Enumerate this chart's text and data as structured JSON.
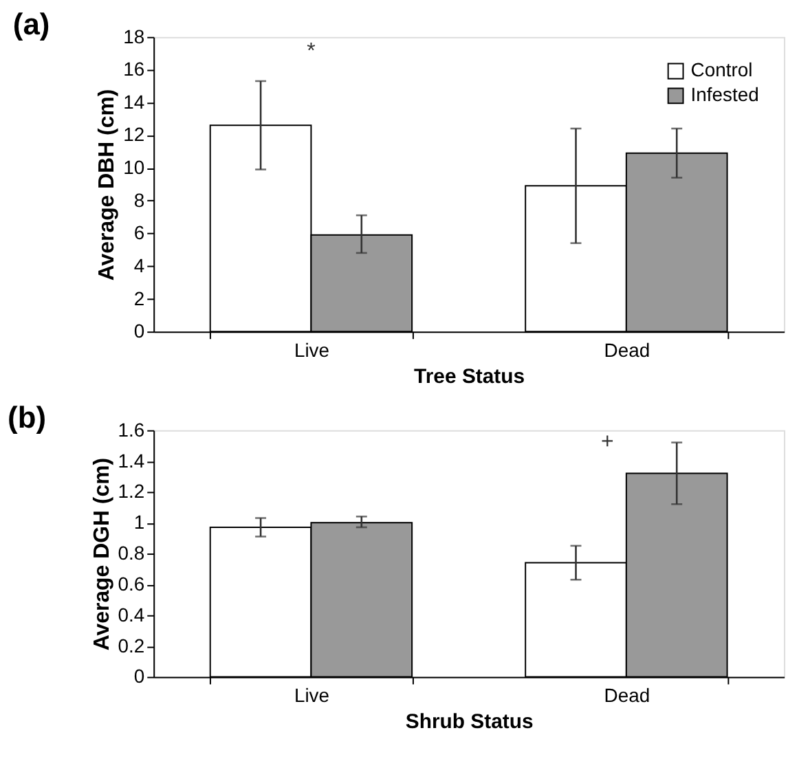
{
  "chart_data": [
    {
      "type": "bar",
      "title": "(a)",
      "xlabel": "Tree Status",
      "ylabel": "Average DBH (cm)",
      "categories": [
        "Live",
        "Dead"
      ],
      "series": [
        {
          "name": "Control",
          "color": "#ffffff",
          "values": [
            12.6,
            8.9
          ],
          "errors": [
            [
              9.9,
              15.3
            ],
            [
              5.4,
              12.4
            ]
          ]
        },
        {
          "name": "Infested",
          "color": "#999999",
          "values": [
            5.9,
            10.9
          ],
          "errors": [
            [
              4.8,
              7.1
            ],
            [
              9.4,
              12.4
            ]
          ]
        }
      ],
      "ylim": [
        0,
        18
      ],
      "yticks": [
        0,
        2,
        4,
        6,
        8,
        10,
        12,
        14,
        16,
        18
      ],
      "grid": false,
      "legend": "top right",
      "annotations": [
        "*"
      ]
    },
    {
      "type": "bar",
      "title": "(b)",
      "xlabel": "Shrub Status",
      "ylabel": "Average DGH (cm)",
      "categories": [
        "Live",
        "Dead"
      ],
      "series": [
        {
          "color": "#ffffff",
          "values": [
            0.97,
            0.74
          ],
          "errors": [
            [
              0.91,
              1.03
            ],
            [
              0.63,
              0.85
            ]
          ]
        },
        {
          "color": "#999999",
          "values": [
            1.0,
            1.32
          ],
          "errors": [
            [
              0.97,
              1.04
            ],
            [
              1.12,
              1.52
            ]
          ]
        }
      ],
      "ylim": [
        0,
        1.6
      ],
      "yticks": [
        0,
        0.2,
        0.4,
        0.6,
        0.8,
        1,
        1.2,
        1.4,
        1.6
      ],
      "grid": false,
      "legend": false,
      "annotations": [
        "+"
      ]
    }
  ]
}
